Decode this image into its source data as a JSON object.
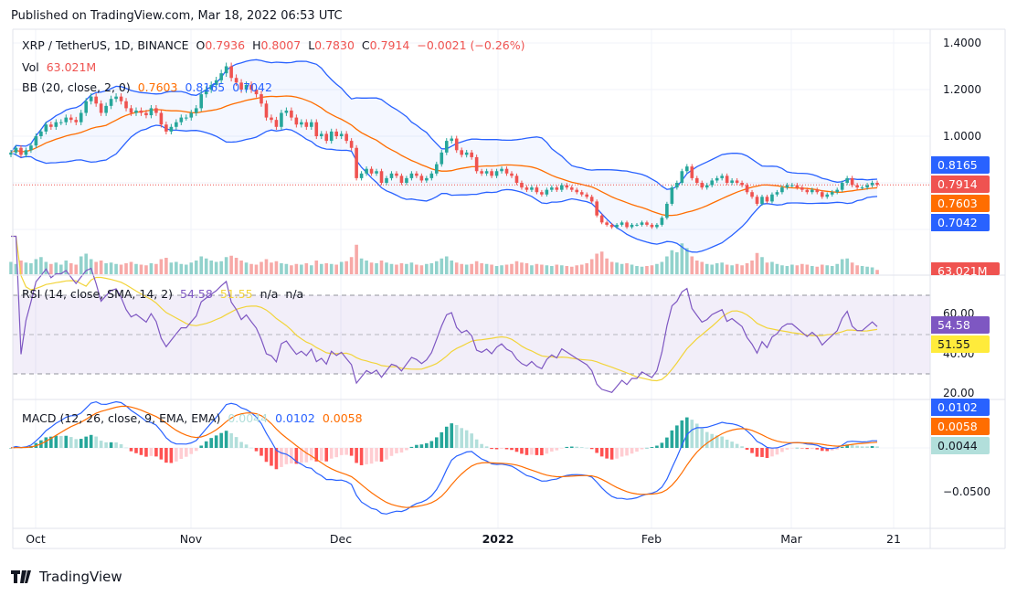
{
  "header": {
    "published": "Published on TradingView.com, Mar 18, 2022 06:53 UTC"
  },
  "legend": {
    "symbol": "XRP / TetherUS, 1D, BINANCE",
    "o_label": "O",
    "o": "0.7936",
    "h_label": "H",
    "h": "0.8007",
    "l_label": "L",
    "l": "0.7830",
    "c_label": "C",
    "c": "0.7914",
    "change": "−0.0021 (−0.26%)",
    "vol_label": "Vol",
    "vol": "63.021M",
    "bb_label": "BB (20, close, 2, 0)",
    "bb_basis": "0.7603",
    "bb_upper": "0.8165",
    "bb_lower": "0.7042",
    "rsi_label": "RSI (14, close, SMA, 14, 2)",
    "rsi": "54.58",
    "rsi_ma": "51.55",
    "rsi_na1": "n/a",
    "rsi_na2": "n/a",
    "macd_label": "MACD (12, 26, close, 9, EMA, EMA)",
    "macd_hist": "0.0044",
    "macd": "0.0102",
    "macd_signal": "0.0058"
  },
  "price_axis": {
    "ticks": [
      "1.4000",
      "1.2000",
      "1.0000"
    ],
    "tags": {
      "bb_upper": "0.8165",
      "close": "0.7914",
      "bb_basis": "0.7603",
      "bb_lower": "0.7042",
      "volume": "63.021M"
    }
  },
  "rsi_axis": {
    "ticks": [
      "60.00",
      "40.00",
      "20.00"
    ],
    "tags": {
      "rsi": "54.58",
      "rsi_ma": "51.55"
    },
    "bands": [
      70,
      50,
      30
    ]
  },
  "macd_axis": {
    "ticks": [
      "−0.0500"
    ],
    "tags": {
      "macd": "0.0102",
      "signal": "0.0058",
      "hist": "0.0044"
    }
  },
  "time_axis": {
    "labels": [
      "Oct",
      "Nov",
      "Dec",
      "2022",
      "Feb",
      "Mar",
      "21"
    ]
  },
  "footer": {
    "brand": "TradingView"
  },
  "colors": {
    "up": "#26a69a",
    "down": "#ef5350",
    "bb_band": "#2962ff",
    "bb_basis": "#ff6d00",
    "rsi": "#7e57c2",
    "rsi_ma": "#f2d43a",
    "macd": "#2962ff",
    "signal": "#ff6d00",
    "hist_up": "#26a69a",
    "hist_up_light": "#b2dfdb",
    "hist_dn": "#ff5252",
    "hist_dn_light": "#ffcdd2"
  },
  "chart_data": {
    "type": "candlestick",
    "symbol": "XRP / TetherUS",
    "interval": "1D",
    "start_date": "2021-09-26",
    "end_date": "2022-03-18",
    "ylim": [
      0.55,
      1.42
    ],
    "close": [
      0.93,
      0.95,
      0.92,
      0.94,
      0.96,
      1.0,
      1.02,
      1.05,
      1.04,
      1.06,
      1.06,
      1.08,
      1.07,
      1.06,
      1.1,
      1.15,
      1.17,
      1.14,
      1.1,
      1.13,
      1.16,
      1.17,
      1.15,
      1.12,
      1.1,
      1.11,
      1.1,
      1.09,
      1.12,
      1.1,
      1.05,
      1.02,
      1.04,
      1.06,
      1.08,
      1.08,
      1.1,
      1.12,
      1.18,
      1.2,
      1.22,
      1.24,
      1.27,
      1.3,
      1.25,
      1.23,
      1.2,
      1.22,
      1.2,
      1.18,
      1.14,
      1.08,
      1.07,
      1.04,
      1.1,
      1.11,
      1.08,
      1.05,
      1.06,
      1.04,
      1.06,
      1.0,
      1.01,
      0.98,
      1.02,
      1.0,
      1.01,
      0.98,
      0.95,
      0.82,
      0.84,
      0.86,
      0.84,
      0.85,
      0.8,
      0.82,
      0.84,
      0.83,
      0.8,
      0.82,
      0.84,
      0.83,
      0.81,
      0.82,
      0.84,
      0.88,
      0.93,
      0.98,
      0.99,
      0.94,
      0.92,
      0.93,
      0.91,
      0.85,
      0.84,
      0.85,
      0.83,
      0.85,
      0.86,
      0.84,
      0.83,
      0.8,
      0.78,
      0.77,
      0.78,
      0.76,
      0.75,
      0.77,
      0.78,
      0.77,
      0.79,
      0.78,
      0.77,
      0.76,
      0.75,
      0.74,
      0.72,
      0.66,
      0.63,
      0.62,
      0.61,
      0.62,
      0.63,
      0.61,
      0.62,
      0.62,
      0.63,
      0.62,
      0.61,
      0.62,
      0.65,
      0.71,
      0.78,
      0.8,
      0.85,
      0.87,
      0.82,
      0.8,
      0.78,
      0.79,
      0.81,
      0.82,
      0.83,
      0.8,
      0.81,
      0.8,
      0.79,
      0.76,
      0.74,
      0.71,
      0.74,
      0.72,
      0.75,
      0.76,
      0.78,
      0.79,
      0.79,
      0.78,
      0.77,
      0.76,
      0.77,
      0.76,
      0.74,
      0.75,
      0.76,
      0.77,
      0.8,
      0.82,
      0.79,
      0.78,
      0.78,
      0.79,
      0.8,
      0.7914
    ],
    "volume_millions": [
      180,
      150,
      200,
      170,
      160,
      220,
      250,
      180,
      150,
      170,
      140,
      200,
      160,
      140,
      260,
      300,
      220,
      180,
      200,
      160,
      170,
      150,
      140,
      160,
      180,
      150,
      140,
      130,
      160,
      150,
      220,
      240,
      170,
      180,
      150,
      140,
      170,
      200,
      260,
      230,
      200,
      180,
      190,
      250,
      270,
      240,
      200,
      170,
      150,
      140,
      180,
      220,
      170,
      190,
      160,
      150,
      130,
      150,
      140,
      160,
      130,
      200,
      150,
      160,
      150,
      140,
      180,
      190,
      250,
      430,
      230,
      200,
      170,
      160,
      200,
      170,
      150,
      140,
      160,
      150,
      170,
      140,
      130,
      150,
      160,
      190,
      230,
      260,
      200,
      170,
      150,
      140,
      150,
      190,
      160,
      150,
      140,
      120,
      130,
      140,
      150,
      190,
      170,
      160,
      130,
      150,
      140,
      130,
      120,
      140,
      130,
      120,
      110,
      130,
      140,
      160,
      220,
      300,
      330,
      230,
      180,
      170,
      150,
      160,
      140,
      120,
      110,
      120,
      130,
      150,
      180,
      260,
      350,
      320,
      450,
      380,
      260,
      200,
      180,
      150,
      140,
      160,
      170,
      140,
      130,
      150,
      130,
      160,
      200,
      310,
      250,
      170,
      180,
      150,
      130,
      120,
      140,
      130,
      150,
      140,
      120,
      110,
      140,
      130,
      120,
      150,
      220,
      230,
      170,
      130,
      120,
      110,
      100,
      63.021
    ]
  }
}
